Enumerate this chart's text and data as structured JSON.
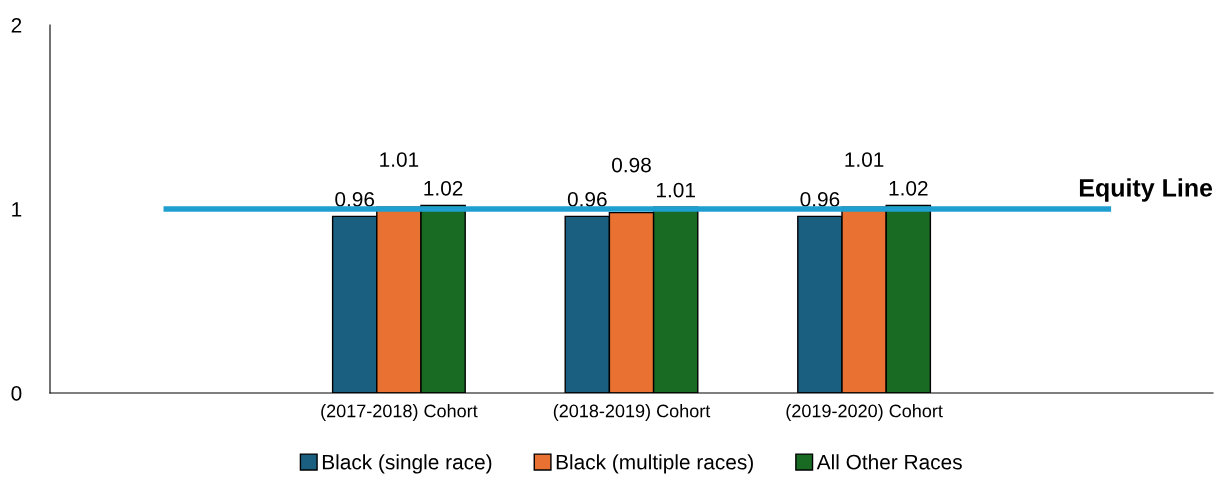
{
  "chart_data": {
    "type": "bar",
    "categories": [
      null,
      "(2017-2018) Cohort",
      "(2018-2019) Cohort",
      "(2019-2020) Cohort",
      null
    ],
    "series": [
      {
        "name": "Black (single race)",
        "color": "#1a5f80",
        "values": [
          null,
          0.96,
          0.96,
          0.96,
          null
        ]
      },
      {
        "name": "Black (multiple races)",
        "color": "#e97132",
        "values": [
          null,
          1.01,
          0.98,
          1.01,
          null
        ]
      },
      {
        "name": "All Other Races",
        "color": "#196b24",
        "values": [
          null,
          1.02,
          1.01,
          1.02,
          null
        ]
      }
    ],
    "ylim": [
      0,
      2
    ],
    "yticks": [
      0,
      1,
      2
    ],
    "data_labels": true,
    "grid": false,
    "legend": "bottom",
    "ref_lines": [
      {
        "axis": "y",
        "value": 1,
        "label": "Equity Line",
        "color": "#1f9fd0",
        "line_style": "solid"
      }
    ]
  }
}
